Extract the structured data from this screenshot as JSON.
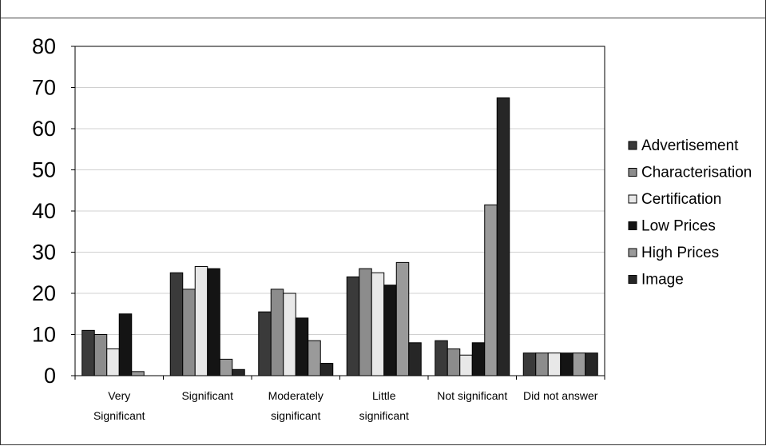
{
  "chart_data": {
    "type": "bar",
    "categories": [
      [
        "Very",
        "Significant"
      ],
      [
        "Significant"
      ],
      [
        "Moderately",
        "significant"
      ],
      [
        "Little",
        "significant"
      ],
      [
        "Not significant"
      ],
      [
        "Did not answer"
      ]
    ],
    "series": [
      {
        "name": "Advertisement",
        "color": "#3a3a3a",
        "values": [
          11,
          25,
          15.5,
          24,
          8.5,
          5.5
        ]
      },
      {
        "name": "Characterisation",
        "color": "#8c8c8c",
        "values": [
          10,
          21,
          21,
          26,
          6.5,
          5.5
        ]
      },
      {
        "name": "Certification",
        "color": "#e8e8e8",
        "values": [
          6.5,
          26.5,
          20,
          25,
          5,
          5.5
        ]
      },
      {
        "name": "Low Prices",
        "color": "#141414",
        "values": [
          15,
          26,
          14,
          22,
          8,
          5.5
        ]
      },
      {
        "name": "High Prices",
        "color": "#9a9a9a",
        "values": [
          1,
          4,
          8.5,
          27.5,
          41.5,
          5.5
        ]
      },
      {
        "name": "Image",
        "color": "#262626",
        "values": [
          0,
          1.5,
          3,
          8,
          67.5,
          5.5
        ]
      }
    ],
    "ylim": [
      0,
      80
    ],
    "yticks": [
      "0",
      "10",
      "20",
      "30",
      "40",
      "50",
      "60",
      "70",
      "80"
    ],
    "grid": true,
    "legend": "right"
  }
}
